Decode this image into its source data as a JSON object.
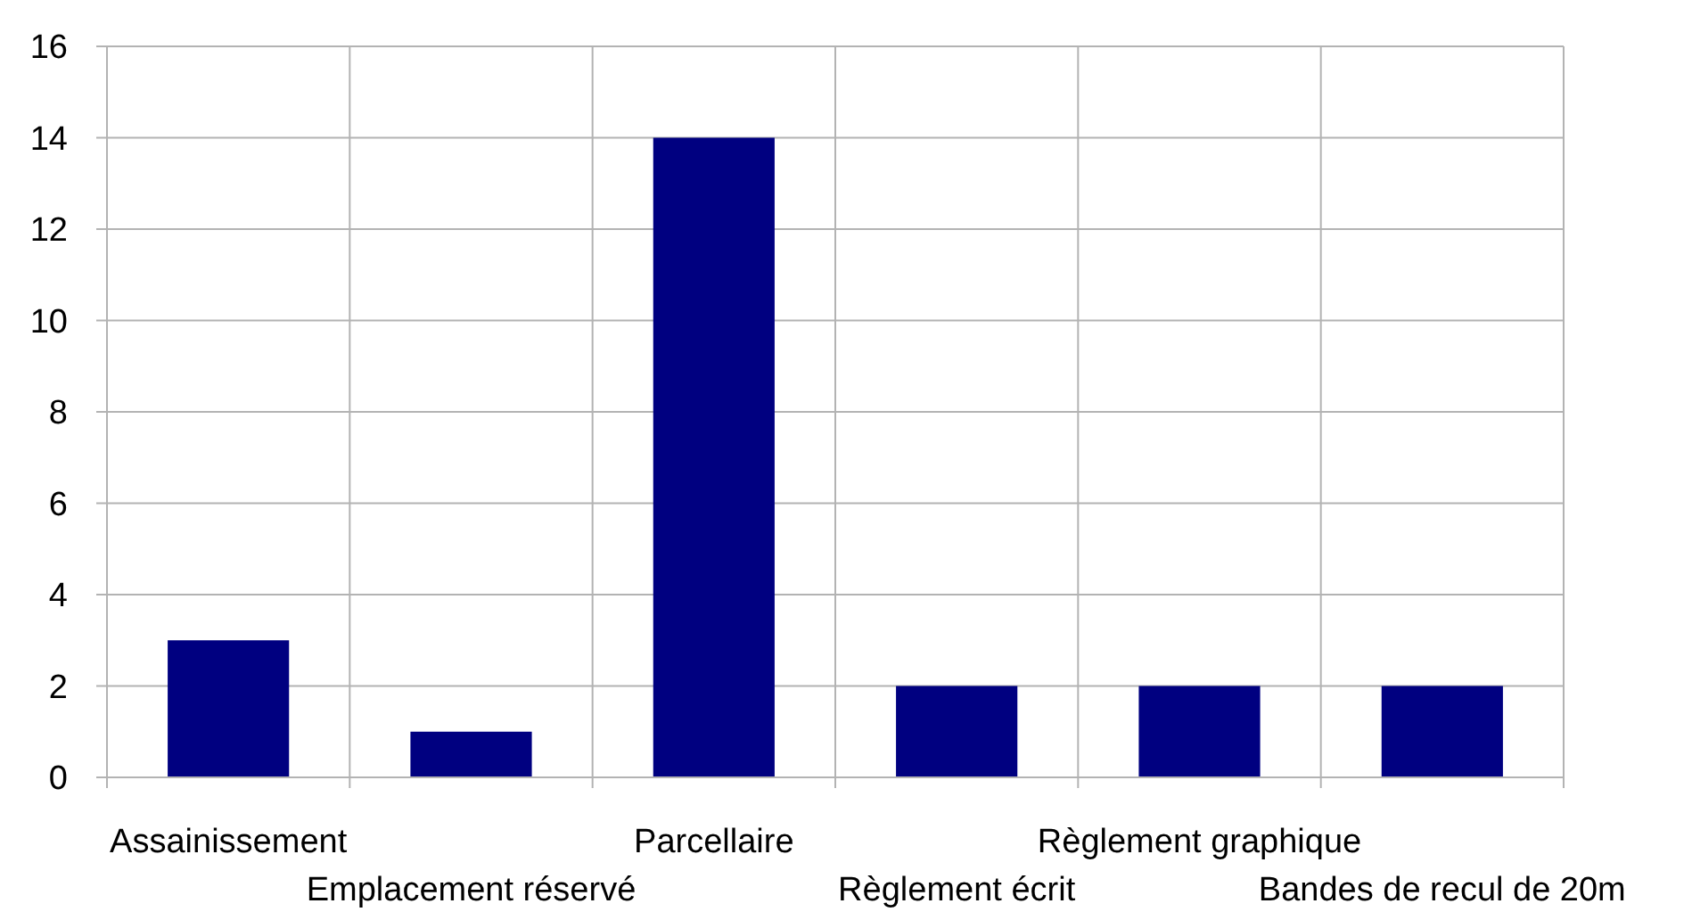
{
  "chart_data": {
    "type": "bar",
    "categories": [
      "Assainissement",
      "Emplacement réservé",
      "Parcellaire",
      "Règlement écrit",
      "Règlement graphique",
      "Bandes de recul de 20m"
    ],
    "values": [
      3,
      1,
      14,
      2,
      2,
      2
    ],
    "color": "#000080",
    "ylim": [
      0,
      16
    ],
    "yticks": [
      0,
      2,
      4,
      6,
      8,
      10,
      12,
      14,
      16
    ],
    "grid": true
  }
}
